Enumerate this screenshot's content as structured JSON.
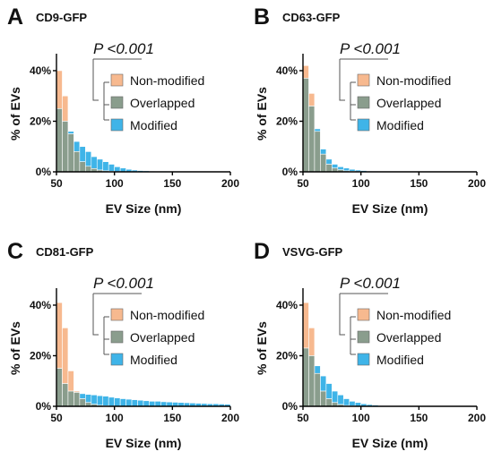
{
  "colors": {
    "non_modified": "#f7b98f",
    "overlapped": "#8a9d8d",
    "modified": "#3fb4e8"
  },
  "chart_data": [
    {
      "type": "bar",
      "panel": "A",
      "title": "CD9-GFP",
      "xlabel": "EV Size (nm)",
      "ylabel": "% of EVs",
      "xlim": [
        50,
        200
      ],
      "ylim": [
        0,
        46
      ],
      "xticks": [
        "50",
        "100",
        "150",
        "200"
      ],
      "yticks": [
        "0%",
        "20%",
        "40%"
      ],
      "annotation": "P <0.001",
      "legend": [
        "Non-modified",
        "Overlapped",
        "Modified"
      ],
      "bin_width": 5,
      "x": [
        52.5,
        57.5,
        62.5,
        67.5,
        72.5,
        77.5,
        82.5,
        87.5,
        92.5,
        97.5,
        102.5,
        107.5,
        112.5,
        117.5,
        122.5,
        127.5,
        132.5,
        137.5,
        142.5,
        147.5,
        152.5,
        157.5,
        162.5,
        167.5,
        172.5,
        177.5,
        182.5,
        187.5,
        192.5,
        197.5
      ],
      "series": [
        {
          "name": "Non-modified",
          "values": [
            40,
            30,
            15,
            8,
            4,
            2.2,
            1.3,
            0.7,
            0.4,
            0.2,
            0.1,
            0.05,
            0.03,
            0.02,
            0,
            0,
            0,
            0,
            0,
            0,
            0,
            0,
            0,
            0,
            0,
            0,
            0,
            0,
            0,
            0
          ]
        },
        {
          "name": "Modified",
          "values": [
            25,
            20,
            16,
            12,
            10,
            8,
            6,
            5,
            4,
            3,
            2,
            1.5,
            1,
            0.7,
            0.5,
            0.4,
            0.3,
            0.25,
            0.2,
            0.15,
            0.12,
            0.1,
            0.08,
            0.06,
            0.05,
            0.04,
            0.03,
            0.02,
            0.02,
            0.01
          ]
        }
      ]
    },
    {
      "type": "bar",
      "panel": "B",
      "title": "CD63-GFP",
      "xlabel": "EV Size (nm)",
      "ylabel": "% of EVs",
      "xlim": [
        50,
        200
      ],
      "ylim": [
        0,
        46
      ],
      "xticks": [
        "50",
        "100",
        "150",
        "200"
      ],
      "yticks": [
        "0%",
        "20%",
        "40%"
      ],
      "annotation": "P <0.001",
      "legend": [
        "Non-modified",
        "Overlapped",
        "Modified"
      ],
      "bin_width": 5,
      "x": [
        52.5,
        57.5,
        62.5,
        67.5,
        72.5,
        77.5,
        82.5,
        87.5,
        92.5,
        97.5,
        102.5,
        107.5,
        112.5,
        117.5,
        122.5,
        127.5,
        132.5,
        137.5,
        142.5,
        147.5,
        152.5,
        157.5,
        162.5,
        167.5,
        172.5,
        177.5,
        182.5,
        187.5,
        192.5,
        197.5
      ],
      "series": [
        {
          "name": "Non-modified",
          "values": [
            42,
            31,
            16,
            7,
            3,
            1.5,
            0.8,
            0.4,
            0.2,
            0.1,
            0.05,
            0,
            0,
            0,
            0,
            0,
            0,
            0,
            0,
            0,
            0,
            0,
            0,
            0,
            0,
            0,
            0,
            0,
            0,
            0
          ]
        },
        {
          "name": "Modified",
          "values": [
            37,
            26,
            17,
            9,
            5,
            3,
            2,
            1.5,
            1,
            0.7,
            0.5,
            0.3,
            0.2,
            0.1,
            0.05,
            0,
            0,
            0,
            0,
            0,
            0,
            0,
            0,
            0,
            0,
            0,
            0,
            0,
            0,
            0
          ]
        }
      ]
    },
    {
      "type": "bar",
      "panel": "C",
      "title": "CD81-GFP",
      "xlabel": "EV Size (nm)",
      "ylabel": "% of EVs",
      "xlim": [
        50,
        200
      ],
      "ylim": [
        0,
        46
      ],
      "xticks": [
        "50",
        "100",
        "150",
        "200"
      ],
      "yticks": [
        "0%",
        "20%",
        "40%"
      ],
      "annotation": "P <0.001",
      "legend": [
        "Non-modified",
        "Overlapped",
        "Modified"
      ],
      "bin_width": 5,
      "x": [
        52.5,
        57.5,
        62.5,
        67.5,
        72.5,
        77.5,
        82.5,
        87.5,
        92.5,
        97.5,
        102.5,
        107.5,
        112.5,
        117.5,
        122.5,
        127.5,
        132.5,
        137.5,
        142.5,
        147.5,
        152.5,
        157.5,
        162.5,
        167.5,
        172.5,
        177.5,
        182.5,
        187.5,
        192.5,
        197.5
      ],
      "series": [
        {
          "name": "Non-modified",
          "values": [
            41,
            31,
            14,
            6,
            3,
            1.5,
            0.8,
            0.4,
            0.2,
            0.1,
            0.05,
            0,
            0,
            0,
            0,
            0,
            0,
            0,
            0,
            0,
            0,
            0,
            0,
            0,
            0,
            0,
            0,
            0,
            0,
            0
          ]
        },
        {
          "name": "Modified",
          "values": [
            15,
            9,
            6,
            5.5,
            5,
            4.7,
            4.5,
            4.2,
            4,
            3.6,
            3.3,
            3,
            2.8,
            2.6,
            2.4,
            2.2,
            2,
            2,
            1.8,
            1.7,
            1.6,
            1.5,
            1.4,
            1.3,
            1.2,
            1.1,
            1,
            1,
            0.9,
            0.8
          ]
        }
      ]
    },
    {
      "type": "bar",
      "panel": "D",
      "title": "VSVG-GFP",
      "xlabel": "EV Size (nm)",
      "ylabel": "% of EVs",
      "xlim": [
        50,
        200
      ],
      "ylim": [
        0,
        46
      ],
      "xticks": [
        "50",
        "100",
        "150",
        "200"
      ],
      "yticks": [
        "0%",
        "20%",
        "40%"
      ],
      "annotation": "P <0.001",
      "legend": [
        "Non-modified",
        "Overlapped",
        "Modified"
      ],
      "bin_width": 5,
      "x": [
        52.5,
        57.5,
        62.5,
        67.5,
        72.5,
        77.5,
        82.5,
        87.5,
        92.5,
        97.5,
        102.5,
        107.5,
        112.5,
        117.5,
        122.5,
        127.5,
        132.5,
        137.5,
        142.5,
        147.5,
        152.5,
        157.5,
        162.5,
        167.5,
        172.5,
        177.5,
        182.5,
        187.5,
        192.5,
        197.5
      ],
      "series": [
        {
          "name": "Non-modified",
          "values": [
            41,
            31,
            13,
            6,
            3,
            1.5,
            0.7,
            0.3,
            0.15,
            0.08,
            0,
            0,
            0,
            0,
            0,
            0,
            0,
            0,
            0,
            0,
            0,
            0,
            0,
            0,
            0,
            0,
            0,
            0,
            0,
            0
          ]
        },
        {
          "name": "Modified",
          "values": [
            23,
            20,
            16,
            12,
            9,
            6,
            4.5,
            3,
            2,
            1.5,
            1,
            0.7,
            0.5,
            0.3,
            0.2,
            0.1,
            0.05,
            0,
            0,
            0,
            0,
            0,
            0,
            0,
            0,
            0,
            0,
            0,
            0,
            0
          ]
        }
      ]
    }
  ]
}
